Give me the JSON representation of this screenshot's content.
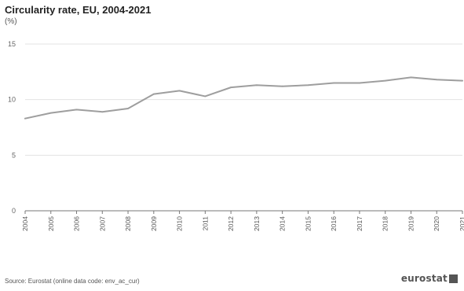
{
  "chart_data": {
    "type": "line",
    "title": "Circularity rate, EU, 2004-2021",
    "unit": "(%)",
    "categories": [
      "2004",
      "2005",
      "2006",
      "2007",
      "2008",
      "2009",
      "2010",
      "2011",
      "2012",
      "2013",
      "2014",
      "2015",
      "2016",
      "2017",
      "2018",
      "2019",
      "2020",
      "2021"
    ],
    "series": [
      {
        "values": [
          8.3,
          8.8,
          9.1,
          8.9,
          9.2,
          10.5,
          10.8,
          10.3,
          11.1,
          11.3,
          11.2,
          11.3,
          11.5,
          11.5,
          11.7,
          12.0,
          11.8,
          11.7
        ],
        "color": "#9e9e9e"
      }
    ],
    "yticks": [
      0,
      5,
      10,
      15
    ],
    "ylim": [
      0,
      15
    ],
    "grid": true,
    "gridColor": "#e3e3e3",
    "axisColor": "#777777"
  },
  "footer": {
    "source": "Source: Eurostat (online data code: env_ac_cur)",
    "logo_text": "eurostat"
  }
}
